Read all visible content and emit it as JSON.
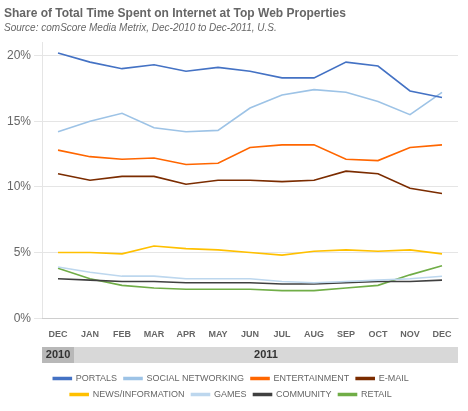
{
  "chart_data": {
    "type": "line",
    "title": "Share of Total Time Spent on Internet at Top Web Properties",
    "subtitle": "Source: comScore Media Metrix, Dec-2010 to Dec-2011, U.S.",
    "categories": [
      "DEC",
      "JAN",
      "FEB",
      "MAR",
      "APR",
      "MAY",
      "JUN",
      "JUL",
      "AUG",
      "SEP",
      "OCT",
      "NOV",
      "DEC"
    ],
    "series": [
      {
        "name": "PORTALS",
        "color": "#4472C4",
        "values": [
          20.2,
          19.5,
          19.0,
          19.3,
          18.8,
          19.1,
          18.8,
          18.3,
          18.3,
          19.5,
          19.2,
          17.3,
          16.8
        ]
      },
      {
        "name": "SOCIAL NETWORKING",
        "color": "#9DC3E6",
        "values": [
          14.2,
          15.0,
          15.6,
          14.5,
          14.2,
          14.3,
          16.0,
          17.0,
          17.4,
          17.2,
          16.5,
          15.5,
          17.2
        ]
      },
      {
        "name": "ENTERTAINMENT",
        "color": "#FF6600",
        "values": [
          12.8,
          12.3,
          12.1,
          12.2,
          11.7,
          11.8,
          13.0,
          13.2,
          13.2,
          12.1,
          12.0,
          13.0,
          13.2
        ]
      },
      {
        "name": "E-MAIL",
        "color": "#7B2C00",
        "values": [
          11.0,
          10.5,
          10.8,
          10.8,
          10.2,
          10.5,
          10.5,
          10.4,
          10.5,
          11.2,
          11.0,
          9.9,
          9.5
        ]
      },
      {
        "name": "NEWS/INFORMATION",
        "color": "#FFC000",
        "values": [
          5.0,
          5.0,
          4.9,
          5.5,
          5.3,
          5.2,
          5.0,
          4.8,
          5.1,
          5.2,
          5.1,
          5.2,
          4.9
        ]
      },
      {
        "name": "GAMES",
        "color": "#BDD7EE",
        "values": [
          3.9,
          3.5,
          3.2,
          3.2,
          3.0,
          3.0,
          3.0,
          2.8,
          2.7,
          2.8,
          2.9,
          3.0,
          3.2
        ]
      },
      {
        "name": "COMMUNITY",
        "color": "#404040",
        "values": [
          3.0,
          2.9,
          2.8,
          2.8,
          2.7,
          2.7,
          2.7,
          2.6,
          2.6,
          2.7,
          2.8,
          2.8,
          2.9
        ]
      },
      {
        "name": "RETAIL",
        "color": "#70AD47",
        "values": [
          3.8,
          3.0,
          2.5,
          2.3,
          2.2,
          2.2,
          2.2,
          2.1,
          2.1,
          2.3,
          2.5,
          3.3,
          4.0
        ]
      }
    ],
    "annotations": [
      {
        "text": "2010",
        "from": 0,
        "to": 0
      },
      {
        "text": "2011",
        "from": 1,
        "to": 12
      }
    ],
    "ylim": [
      0,
      21
    ],
    "yticks": [
      {
        "value": 0,
        "label": "0%"
      },
      {
        "value": 5,
        "label": "5%"
      },
      {
        "value": 10,
        "label": "10%"
      },
      {
        "value": 15,
        "label": "15%"
      },
      {
        "value": 20,
        "label": "20%"
      }
    ],
    "grid": true,
    "legend": "bottom"
  }
}
